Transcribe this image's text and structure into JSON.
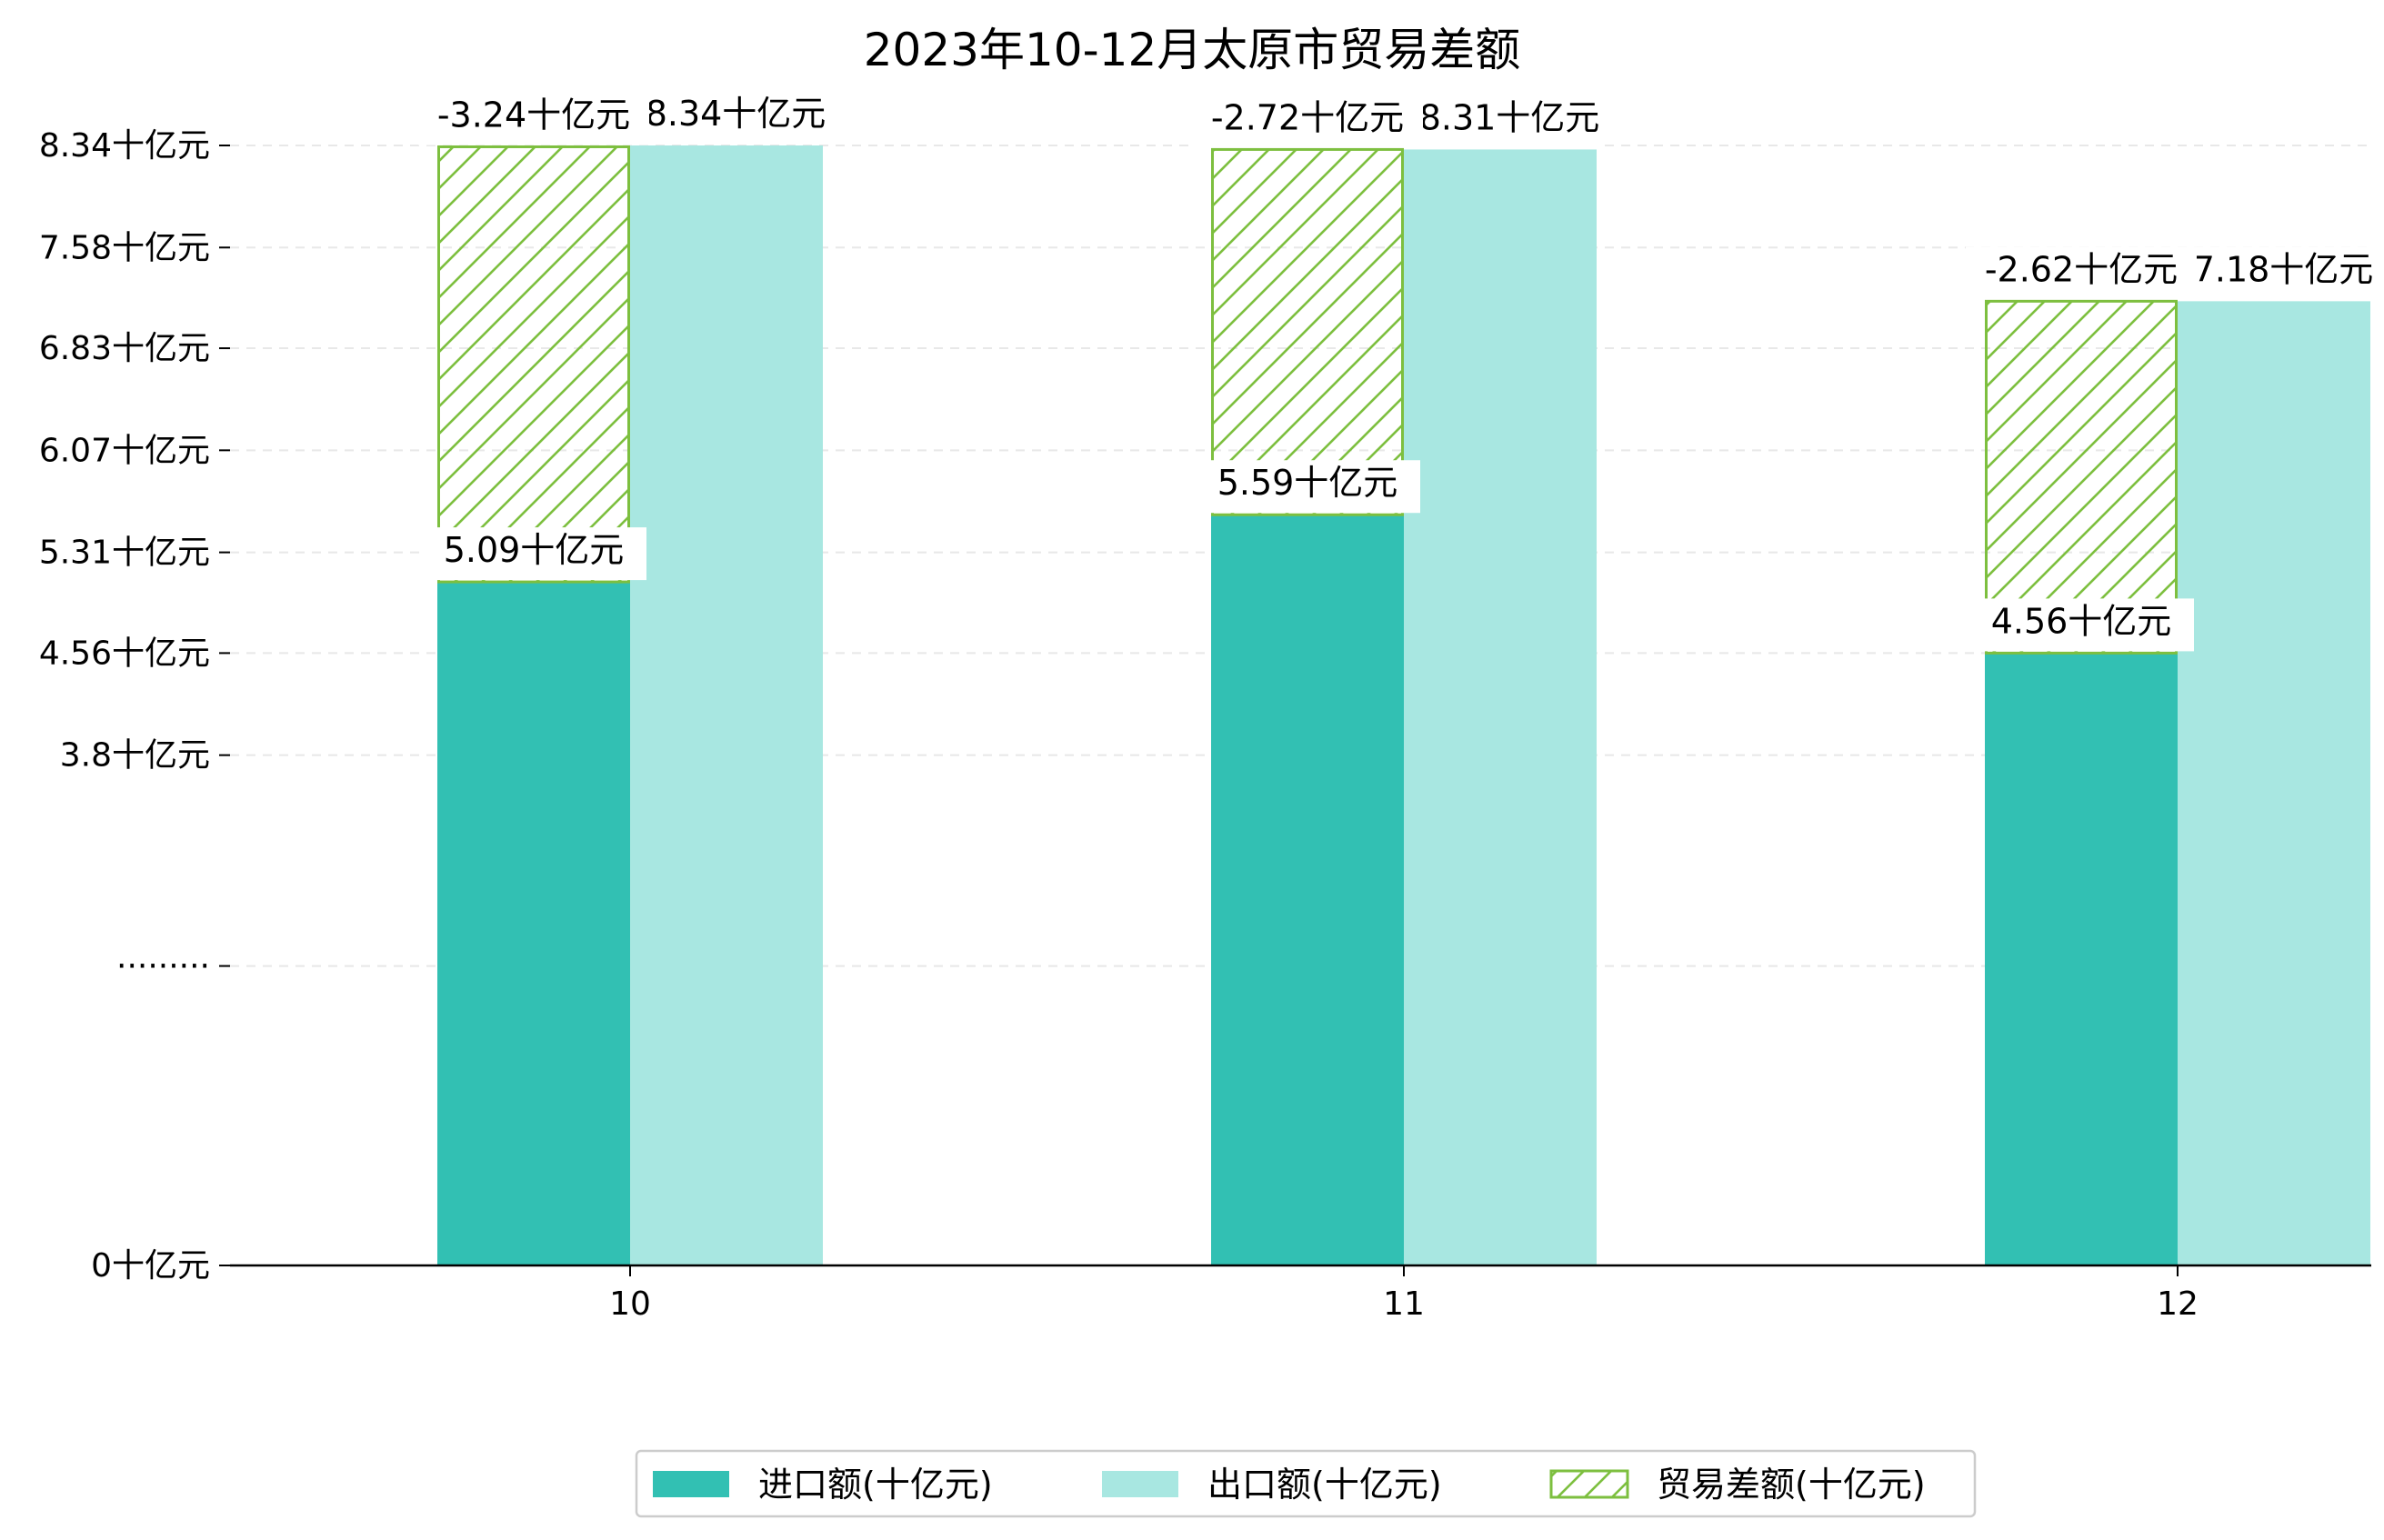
{
  "chart_data": {
    "type": "bar",
    "title": "2023年10-12月太原市贸易差额",
    "xlabel": "",
    "ylabel": "",
    "categories": [
      "10",
      "11",
      "12"
    ],
    "series": [
      {
        "name": "进口额(十亿元)",
        "values": [
          5.09,
          5.59,
          4.56
        ],
        "labels": [
          "5.09十亿元",
          "5.59十亿元",
          "4.56十亿元"
        ],
        "color": "#32c0b3"
      },
      {
        "name": "出口额(十亿元)",
        "values": [
          8.34,
          8.31,
          7.18
        ],
        "labels": [
          "8.34十亿元",
          "8.31十亿元",
          "7.18十亿元"
        ],
        "color": "#a8e7e1"
      },
      {
        "name": "贸易差额(十亿元)",
        "values": [
          -3.24,
          -2.72,
          -2.62
        ],
        "labels": [
          "-3.24十亿元",
          "-2.72十亿元",
          "-2.62十亿元"
        ],
        "color": "#7dbf3f",
        "hatch": true
      }
    ],
    "y_ticks": [
      {
        "value": 0,
        "label": "0十亿元"
      },
      {
        "value": 2.23,
        "label": "·········"
      },
      {
        "value": 3.8,
        "label": "3.8十亿元"
      },
      {
        "value": 4.56,
        "label": "4.56十亿元"
      },
      {
        "value": 5.31,
        "label": "5.31十亿元"
      },
      {
        "value": 6.07,
        "label": "6.07十亿元"
      },
      {
        "value": 6.83,
        "label": "6.83十亿元"
      },
      {
        "value": 7.58,
        "label": "7.58十亿元"
      },
      {
        "value": 8.34,
        "label": "8.34十亿元"
      }
    ],
    "ylim": [
      0,
      8.34
    ],
    "y_axis_break": true,
    "grid": true,
    "grid_style": "dashed",
    "legend": "bottom-center"
  }
}
